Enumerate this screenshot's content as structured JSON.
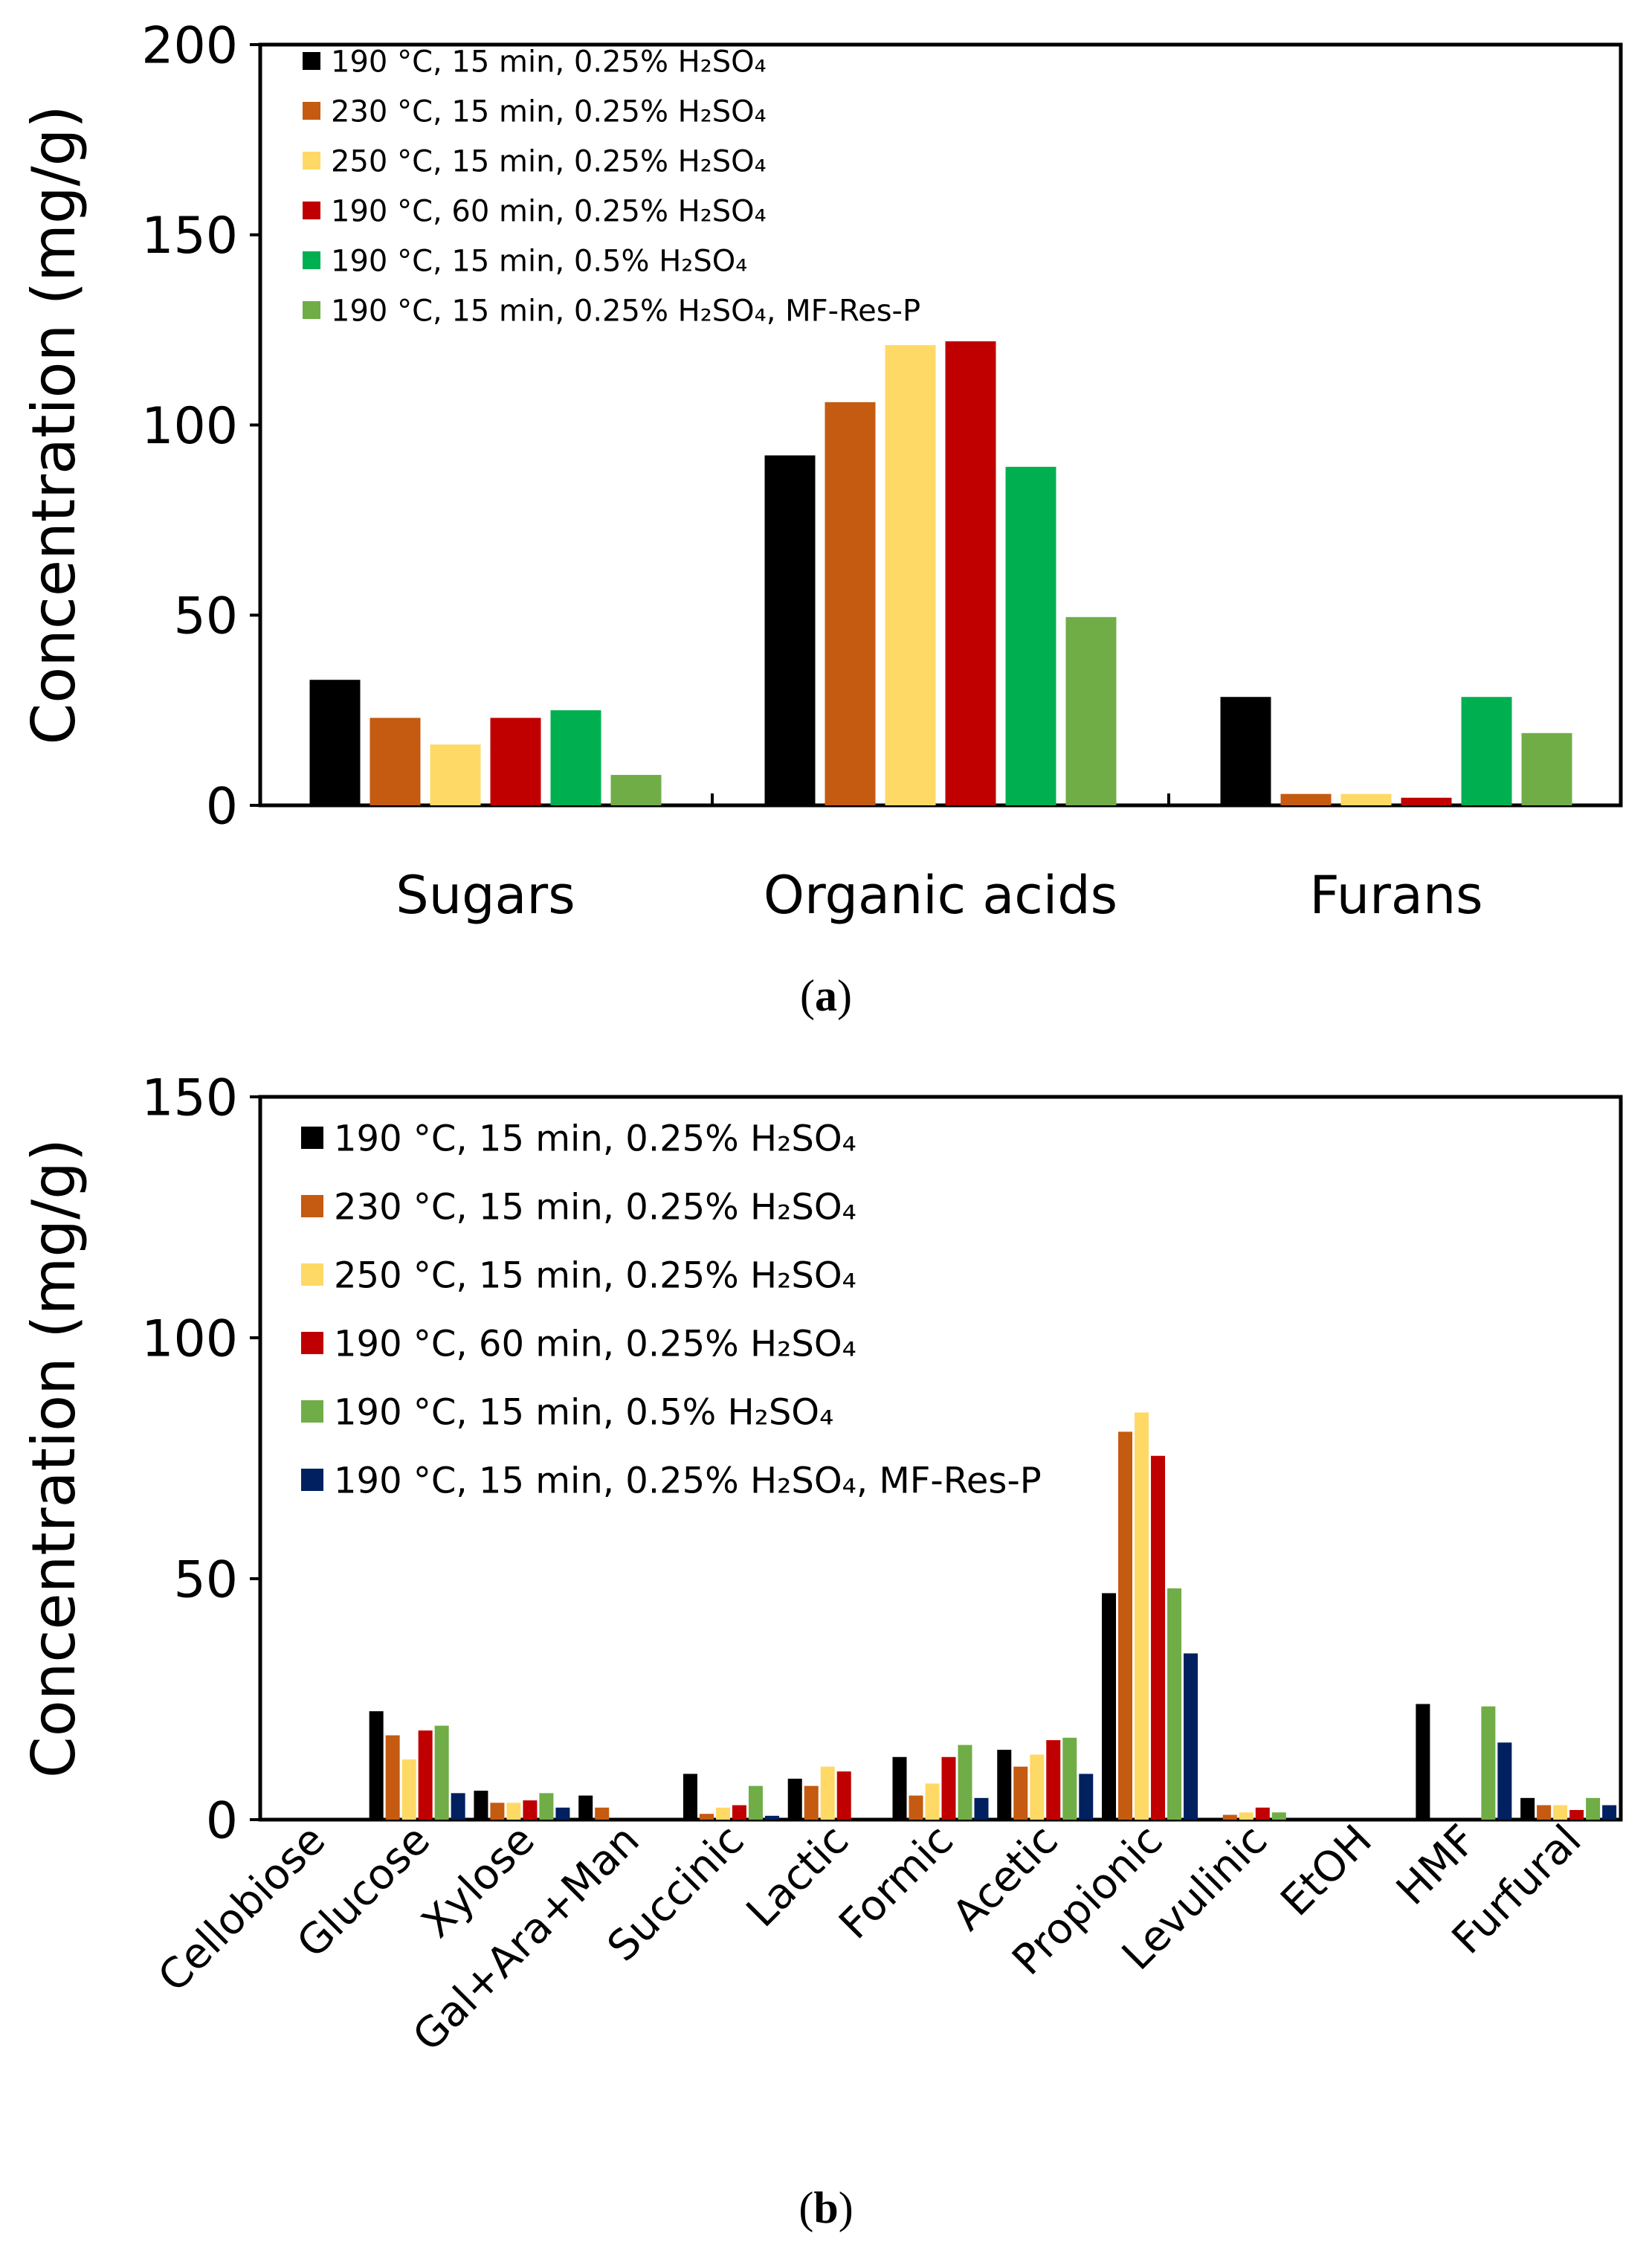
{
  "charts": [
    {
      "type": "bar",
      "panel_label": "a",
      "title": "",
      "xlabel": "",
      "ylabel": "Concentration  (mg/g)",
      "ylim": [
        0,
        200
      ],
      "yticks": [
        0,
        50,
        100,
        150,
        200
      ],
      "categories": [
        "Sugars",
        "Organic acids",
        "Furans"
      ],
      "series": [
        {
          "name": "190 °C, 15 min, 0.25% H₂SO₄",
          "color": "#000000",
          "values": [
            33,
            92,
            28.5
          ]
        },
        {
          "name": "230 °C, 15 min, 0.25% H₂SO₄",
          "color": "#C55A11",
          "values": [
            23,
            106,
            3
          ]
        },
        {
          "name": "250 °C, 15 min, 0.25% H₂SO₄",
          "color": "#FFD966",
          "values": [
            16,
            121,
            3
          ]
        },
        {
          "name": "190 °C, 60 min, 0.25% H₂SO₄",
          "color": "#C00000",
          "values": [
            23,
            122,
            2
          ]
        },
        {
          "name": "190 °C, 15 min, 0.5% H₂SO₄",
          "color": "#00B050",
          "values": [
            25,
            89,
            28.5
          ]
        },
        {
          "name": "190 °C, 15 min, 0.25% H₂SO₄, MF-Res-P",
          "color": "#70AD47",
          "values": [
            8,
            49.5,
            19
          ]
        }
      ]
    },
    {
      "type": "bar",
      "panel_label": "b",
      "title": "",
      "xlabel": "",
      "ylabel": "Concentration (mg/g)",
      "ylim": [
        0,
        150
      ],
      "yticks": [
        0,
        50,
        100,
        150
      ],
      "categories": [
        "Cellobiose",
        "Glucose",
        "Xylose",
        "Gal+Ara+Man",
        "Succinic",
        "Lactic",
        "Formic",
        "Acetic",
        "Propionic",
        "Levulinic",
        "EtOH",
        "HMF",
        "Furfural"
      ],
      "series": [
        {
          "name": "190 °C, 15 min, 0.25% H₂SO₄",
          "color": "#000000",
          "values": [
            0,
            22.5,
            6,
            5,
            9.5,
            8.5,
            13,
            14.5,
            47,
            0,
            0,
            24,
            4.5
          ]
        },
        {
          "name": "230 °C, 15 min, 0.25% H₂SO₄",
          "color": "#C55A11",
          "values": [
            0,
            17.5,
            3.5,
            2.5,
            1.2,
            7,
            5,
            11,
            80.5,
            1,
            0,
            0,
            3
          ]
        },
        {
          "name": "250 °C, 15 min, 0.25% H₂SO₄",
          "color": "#FFD966",
          "values": [
            0,
            12.5,
            3.5,
            0,
            2.5,
            11,
            7.5,
            13.5,
            84.5,
            1.5,
            0,
            0,
            3
          ]
        },
        {
          "name": "190 °C, 60 min, 0.25% H₂SO₄",
          "color": "#C00000",
          "values": [
            0,
            18.5,
            4,
            0,
            3,
            10,
            13,
            16.5,
            75.5,
            2.5,
            0,
            0,
            2
          ]
        },
        {
          "name": "190 °C, 15 min, 0.5% H₂SO₄",
          "color": "#70AD47",
          "values": [
            0,
            19.5,
            5.5,
            0,
            7,
            0,
            15.5,
            17,
            48,
            1.5,
            0,
            23.5,
            4.5
          ]
        },
        {
          "name": "190 °C, 15 min, 0.25% H₂SO₄, MF-Res-P",
          "color": "#002060",
          "values": [
            0,
            5.5,
            2.5,
            0,
            0.8,
            0,
            4.5,
            9.5,
            34.5,
            0,
            0,
            16,
            3
          ]
        }
      ]
    }
  ]
}
